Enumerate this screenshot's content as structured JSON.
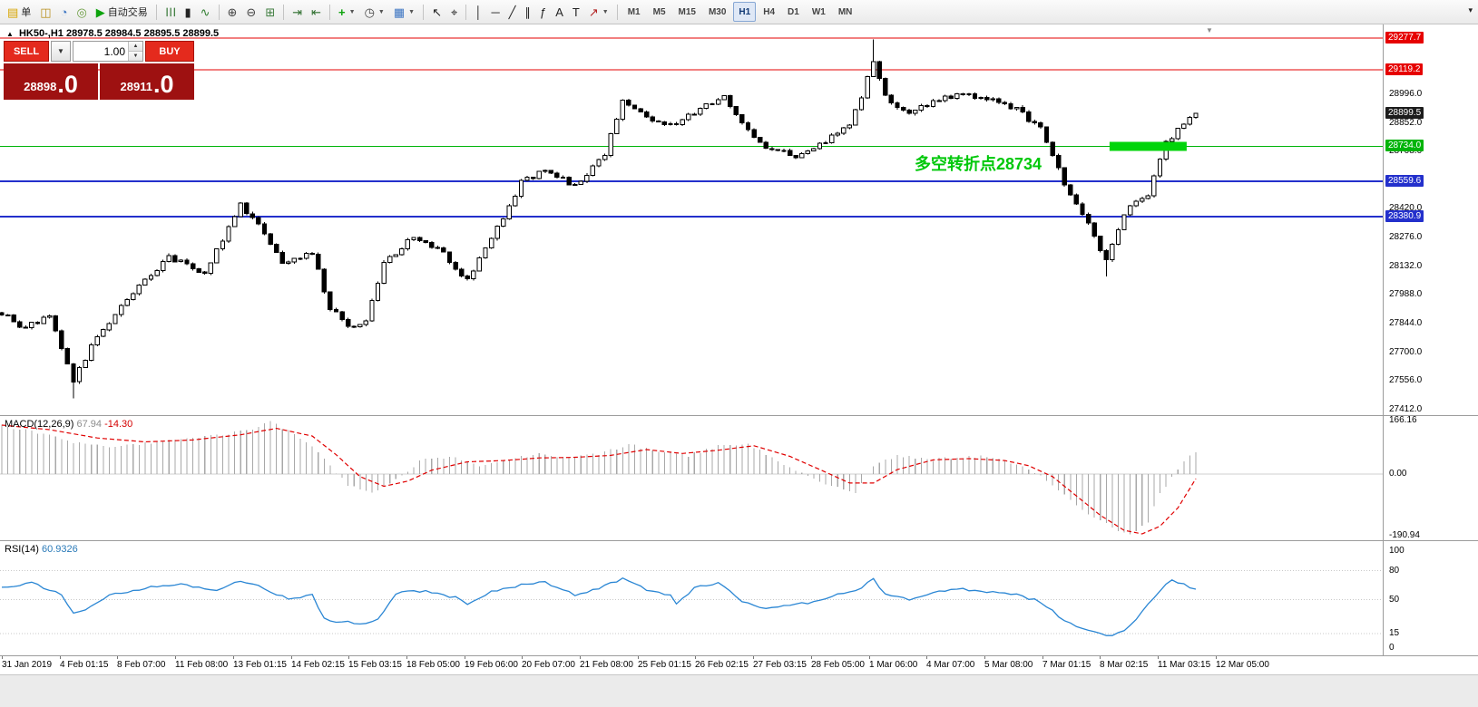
{
  "toolbar": {
    "groups": [
      {
        "items": [
          {
            "name": "new-order-button",
            "icon": "order-ticket-icon",
            "glyph": "▤",
            "color": "#d7a500",
            "label": "单"
          },
          {
            "name": "chart-window-button",
            "icon": "chart-window-icon",
            "glyph": "◫",
            "color": "#b98f1c"
          },
          {
            "name": "profiles-button",
            "icon": "profiles-icon",
            "glyph": "◔",
            "color": "#3b74c2"
          },
          {
            "name": "navigator-button",
            "icon": "navigator-icon",
            "glyph": "◎",
            "color": "#6a9c3f"
          },
          {
            "name": "autotrading-button",
            "icon": "autotrading-play-icon",
            "glyph": "▶",
            "color": "#0da30d",
            "label": "自动交易"
          }
        ]
      },
      {
        "items": [
          {
            "name": "bar-chart-button",
            "icon": "ohlc-bars-icon",
            "glyph": "☰",
            "color": "#3f7d3f"
          },
          {
            "name": "candlestick-chart-button",
            "icon": "candlestick-icon",
            "glyph": "▮",
            "color": "#222222"
          },
          {
            "name": "line-chart-button",
            "icon": "line-chart-icon",
            "glyph": "∿",
            "color": "#2f7d2f"
          }
        ]
      },
      {
        "items": [
          {
            "name": "zoom-in-button",
            "icon": "zoom-in-icon",
            "glyph": "⊕",
            "color": "#444444"
          },
          {
            "name": "zoom-out-button",
            "icon": "zoom-out-icon",
            "glyph": "⊖",
            "color": "#444444"
          },
          {
            "name": "tile-windows-button",
            "icon": "tile-windows-icon",
            "glyph": "⊞",
            "color": "#3f7d3f"
          }
        ]
      },
      {
        "items": [
          {
            "name": "auto-scroll-button",
            "icon": "auto-scroll-icon",
            "glyph": "⇥",
            "color": "#2f6f2f"
          },
          {
            "name": "chart-shift-button",
            "icon": "chart-shift-icon",
            "glyph": "⇤",
            "color": "#2f6f2f"
          }
        ]
      },
      {
        "items": [
          {
            "name": "indicators-button",
            "icon": "add-indicator-icon",
            "glyph": "+",
            "color": "#0da30d",
            "bold": true,
            "dropdown": true
          },
          {
            "name": "periods-button",
            "icon": "clock-icon",
            "glyph": "◷",
            "color": "#444444",
            "dropdown": true
          },
          {
            "name": "templates-button",
            "icon": "template-chart-icon",
            "glyph": "▦",
            "color": "#3b74c2",
            "dropdown": true
          }
        ]
      },
      {
        "items": [
          {
            "name": "cursor-button",
            "icon": "cursor-arrow-icon",
            "glyph": "↖",
            "color": "#222222"
          },
          {
            "name": "crosshair-button",
            "icon": "crosshair-icon",
            "glyph": "⌖",
            "color": "#222222"
          }
        ]
      },
      {
        "items": [
          {
            "name": "vertical-line-button",
            "icon": "vertical-line-icon",
            "glyph": "│",
            "color": "#222222"
          },
          {
            "name": "horizontal-line-button",
            "icon": "horizontal-line-icon",
            "glyph": "─",
            "color": "#222222"
          },
          {
            "name": "trendline-button",
            "icon": "trendline-icon",
            "glyph": "╱",
            "color": "#222222"
          },
          {
            "name": "channel-button",
            "icon": "channel-icon",
            "glyph": "∥",
            "color": "#222222"
          },
          {
            "name": "fibonacci-button",
            "icon": "fibonacci-icon",
            "glyph": "ƒ",
            "color": "#222222"
          },
          {
            "name": "text-button",
            "icon": "text-icon",
            "glyph": "A",
            "color": "#222222"
          },
          {
            "name": "text-label-button",
            "icon": "text-label-icon",
            "glyph": "T",
            "color": "#222222"
          },
          {
            "name": "arrow-tools-button",
            "icon": "arrow-tools-icon",
            "glyph": "↗",
            "color": "#b22222",
            "dropdown": true
          }
        ]
      }
    ],
    "timeframes": [
      "M1",
      "M5",
      "M15",
      "M30",
      "H1",
      "H4",
      "D1",
      "W1",
      "MN"
    ],
    "active_timeframe": "H1",
    "overflow_icon": "▾"
  },
  "chart_header": {
    "symbol_period": "HK50-,H1",
    "ohlc": "28978.5 28984.5 28895.5 28899.5",
    "marker_icon": "▲",
    "shift_marker_icon": "▼"
  },
  "trade_panel": {
    "sell_label": "SELL",
    "buy_label": "BUY",
    "volume": "1.00",
    "sell_price_small": "28898",
    "sell_price_big": ".0",
    "buy_price_small": "28911",
    "buy_price_big": ".0",
    "dropdown_icon": "▼",
    "spin_up_icon": "▲",
    "spin_down_icon": "▼",
    "button_color": "#e42a1d",
    "panel_color": "#9e1111"
  },
  "annotation": {
    "text": "多空转折点28734",
    "color": "#00c80a"
  },
  "price_axis": {
    "ticks": [
      {
        "label": "28996.0",
        "price": 28996.0
      },
      {
        "label": "28852.0",
        "price": 28852.0
      },
      {
        "label": "28708.0",
        "price": 28708.0
      },
      {
        "label": "28420.0",
        "price": 28420.0
      },
      {
        "label": "28276.0",
        "price": 28276.0
      },
      {
        "label": "28132.0",
        "price": 28132.0
      },
      {
        "label": "27988.0",
        "price": 27988.0
      },
      {
        "label": "27844.0",
        "price": 27844.0
      },
      {
        "label": "27700.0",
        "price": 27700.0
      },
      {
        "label": "27556.0",
        "price": 27556.0
      },
      {
        "label": "27412.0",
        "price": 27412.0
      }
    ],
    "tags": [
      {
        "label": "29277.7",
        "price": 29277.7,
        "bg": "#e60000"
      },
      {
        "label": "29119.2",
        "price": 29119.2,
        "bg": "#e60000"
      },
      {
        "label": "28899.5",
        "price": 28899.5,
        "bg": "#1c1c1c"
      },
      {
        "label": "28734.0",
        "price": 28734.0,
        "bg": "#00b40a"
      },
      {
        "label": "28559.6",
        "price": 28559.6,
        "bg": "#2330cc"
      },
      {
        "label": "28380.9",
        "price": 28380.9,
        "bg": "#2330cc"
      }
    ]
  },
  "time_axis": {
    "labels": [
      "31 Jan 2019",
      "4 Feb 01:15",
      "8 Feb 07:00",
      "11 Feb 08:00",
      "13 Feb 01:15",
      "14 Feb 02:15",
      "15 Feb 03:15",
      "18 Feb 05:00",
      "19 Feb 06:00",
      "20 Feb 07:00",
      "21 Feb 08:00",
      "25 Feb 01:15",
      "26 Feb 02:15",
      "27 Feb 03:15",
      "28 Feb 05:00",
      "1 Mar 06:00",
      "4 Mar 07:00",
      "5 Mar 08:00",
      "7 Mar 01:15",
      "8 Mar 02:15",
      "11 Mar 03:15",
      "12 Mar 05:00"
    ]
  },
  "indicators": {
    "macd": {
      "name": "MACD(12,26,9)",
      "main_value": "67.94",
      "signal_value": "-14.30",
      "scale": [
        {
          "label": "166.16",
          "value": 166.16
        },
        {
          "label": "0.00",
          "value": 0
        },
        {
          "label": "-190.94",
          "value": -190.94
        }
      ]
    },
    "rsi": {
      "name": "RSI(14)",
      "value": "60.9326",
      "scale": [
        {
          "label": "100",
          "value": 100
        },
        {
          "label": "80",
          "value": 80
        },
        {
          "label": "50",
          "value": 50
        },
        {
          "label": "15",
          "value": 15
        },
        {
          "label": "0",
          "value": 0
        }
      ]
    }
  },
  "chart_data": {
    "type": "candlestick",
    "symbol": "HK50-",
    "timeframe": "H1",
    "approximate": true,
    "bars": 201,
    "last_close": 28899.5,
    "last_bar_ohlc": {
      "open": 28978.5,
      "high": 28984.5,
      "low": 28895.5,
      "close": 28899.5
    },
    "price_axis_range": [
      27412.0,
      29277.7
    ],
    "price_path": [
      [
        0,
        27900
      ],
      [
        3,
        27820
      ],
      [
        8,
        27880
      ],
      [
        12,
        27560
      ],
      [
        16,
        27780
      ],
      [
        22,
        28000
      ],
      [
        28,
        28180
      ],
      [
        34,
        28100
      ],
      [
        40,
        28440
      ],
      [
        43,
        28350
      ],
      [
        47,
        28160
      ],
      [
        52,
        28200
      ],
      [
        55,
        27920
      ],
      [
        58,
        27830
      ],
      [
        61,
        27850
      ],
      [
        64,
        28150
      ],
      [
        69,
        28280
      ],
      [
        74,
        28200
      ],
      [
        78,
        28060
      ],
      [
        82,
        28270
      ],
      [
        87,
        28550
      ],
      [
        91,
        28620
      ],
      [
        96,
        28530
      ],
      [
        101,
        28700
      ],
      [
        104,
        28960
      ],
      [
        108,
        28870
      ],
      [
        113,
        28850
      ],
      [
        117,
        28920
      ],
      [
        121,
        28990
      ],
      [
        124,
        28850
      ],
      [
        128,
        28720
      ],
      [
        133,
        28690
      ],
      [
        138,
        28760
      ],
      [
        142,
        28830
      ],
      [
        146,
        29150
      ],
      [
        148,
        28980
      ],
      [
        152,
        28900
      ],
      [
        156,
        28960
      ],
      [
        160,
        29000
      ],
      [
        165,
        28980
      ],
      [
        170,
        28920
      ],
      [
        174,
        28820
      ],
      [
        178,
        28550
      ],
      [
        182,
        28350
      ],
      [
        185,
        28150
      ],
      [
        188,
        28400
      ],
      [
        192,
        28500
      ],
      [
        195,
        28750
      ],
      [
        198,
        28850
      ],
      [
        200,
        28899.5
      ]
    ],
    "wick_events": [
      {
        "bar": 12,
        "low": 27470
      },
      {
        "bar": 146,
        "high": 29272
      },
      {
        "bar": 147,
        "high": 29160
      },
      {
        "bar": 185,
        "low": 28080
      }
    ],
    "levels": [
      {
        "price": 29277.7,
        "color": "#e60000",
        "width": 1
      },
      {
        "price": 29119.2,
        "color": "#e60000",
        "width": 1
      },
      {
        "price": 28734.0,
        "color": "#00b40a",
        "width": 1
      },
      {
        "price": 28559.6,
        "color": "#2330cc",
        "width": 2
      },
      {
        "price": 28380.9,
        "color": "#2330cc",
        "width": 2
      }
    ],
    "highlight_segment": {
      "price": 28734.0,
      "bar_start": 186,
      "bar_end": 198,
      "color": "#00d40a",
      "thickness": 10
    },
    "macd": {
      "last_main": 67.94,
      "last_signal": -14.3,
      "range": [
        -190.94,
        166.16
      ],
      "main": [
        [
          0,
          150
        ],
        [
          6,
          128
        ],
        [
          12,
          100
        ],
        [
          18,
          85
        ],
        [
          24,
          95
        ],
        [
          30,
          112
        ],
        [
          36,
          120
        ],
        [
          42,
          138
        ],
        [
          45,
          162
        ],
        [
          48,
          135
        ],
        [
          52,
          85
        ],
        [
          55,
          25
        ],
        [
          58,
          -35
        ],
        [
          62,
          -62
        ],
        [
          66,
          -18
        ],
        [
          70,
          40
        ],
        [
          75,
          55
        ],
        [
          80,
          28
        ],
        [
          85,
          45
        ],
        [
          90,
          62
        ],
        [
          95,
          48
        ],
        [
          100,
          62
        ],
        [
          105,
          92
        ],
        [
          110,
          68
        ],
        [
          115,
          58
        ],
        [
          120,
          86
        ],
        [
          125,
          96
        ],
        [
          130,
          38
        ],
        [
          135,
          -8
        ],
        [
          140,
          -42
        ],
        [
          143,
          -58
        ],
        [
          146,
          25
        ],
        [
          150,
          58
        ],
        [
          155,
          44
        ],
        [
          160,
          52
        ],
        [
          165,
          56
        ],
        [
          170,
          28
        ],
        [
          174,
          -2
        ],
        [
          178,
          -62
        ],
        [
          182,
          -125
        ],
        [
          186,
          -165
        ],
        [
          189,
          -190
        ],
        [
          192,
          -150
        ],
        [
          194,
          -60
        ],
        [
          196,
          -12
        ],
        [
          198,
          40
        ],
        [
          200,
          67.94
        ]
      ],
      "signal": [
        [
          0,
          152
        ],
        [
          8,
          138
        ],
        [
          16,
          112
        ],
        [
          24,
          100
        ],
        [
          32,
          106
        ],
        [
          40,
          122
        ],
        [
          46,
          142
        ],
        [
          52,
          118
        ],
        [
          56,
          60
        ],
        [
          60,
          -8
        ],
        [
          64,
          -38
        ],
        [
          68,
          -22
        ],
        [
          72,
          12
        ],
        [
          78,
          38
        ],
        [
          84,
          42
        ],
        [
          90,
          50
        ],
        [
          96,
          52
        ],
        [
          102,
          58
        ],
        [
          108,
          76
        ],
        [
          114,
          64
        ],
        [
          120,
          74
        ],
        [
          126,
          88
        ],
        [
          132,
          55
        ],
        [
          138,
          6
        ],
        [
          142,
          -28
        ],
        [
          146,
          -28
        ],
        [
          150,
          14
        ],
        [
          156,
          44
        ],
        [
          162,
          48
        ],
        [
          168,
          42
        ],
        [
          172,
          26
        ],
        [
          176,
          -8
        ],
        [
          180,
          -68
        ],
        [
          184,
          -128
        ],
        [
          188,
          -175
        ],
        [
          191,
          -186
        ],
        [
          194,
          -162
        ],
        [
          197,
          -105
        ],
        [
          199,
          -45
        ],
        [
          200,
          -14.3
        ]
      ]
    },
    "rsi": {
      "last": 60.9326,
      "levels": [
        80,
        50,
        15
      ],
      "range": [
        0,
        100
      ],
      "series": [
        [
          0,
          62
        ],
        [
          5,
          68
        ],
        [
          10,
          55
        ],
        [
          12,
          35
        ],
        [
          14,
          40
        ],
        [
          18,
          55
        ],
        [
          24,
          62
        ],
        [
          30,
          66
        ],
        [
          36,
          60
        ],
        [
          40,
          70
        ],
        [
          44,
          62
        ],
        [
          48,
          50
        ],
        [
          52,
          55
        ],
        [
          54,
          30
        ],
        [
          56,
          26
        ],
        [
          58,
          28
        ],
        [
          60,
          25
        ],
        [
          63,
          30
        ],
        [
          66,
          55
        ],
        [
          68,
          60
        ],
        [
          72,
          58
        ],
        [
          76,
          52
        ],
        [
          78,
          45
        ],
        [
          82,
          58
        ],
        [
          87,
          65
        ],
        [
          91,
          68
        ],
        [
          96,
          55
        ],
        [
          100,
          62
        ],
        [
          104,
          72
        ],
        [
          108,
          60
        ],
        [
          112,
          55
        ],
        [
          113,
          45
        ],
        [
          116,
          62
        ],
        [
          120,
          68
        ],
        [
          124,
          48
        ],
        [
          128,
          40
        ],
        [
          132,
          44
        ],
        [
          136,
          48
        ],
        [
          140,
          55
        ],
        [
          144,
          62
        ],
        [
          146,
          72
        ],
        [
          148,
          55
        ],
        [
          152,
          50
        ],
        [
          156,
          58
        ],
        [
          160,
          62
        ],
        [
          165,
          58
        ],
        [
          170,
          55
        ],
        [
          174,
          48
        ],
        [
          178,
          28
        ],
        [
          181,
          20
        ],
        [
          184,
          15
        ],
        [
          186,
          13
        ],
        [
          188,
          18
        ],
        [
          190,
          30
        ],
        [
          192,
          45
        ],
        [
          194,
          60
        ],
        [
          196,
          70
        ],
        [
          198,
          66
        ],
        [
          200,
          60.9326
        ]
      ]
    }
  }
}
